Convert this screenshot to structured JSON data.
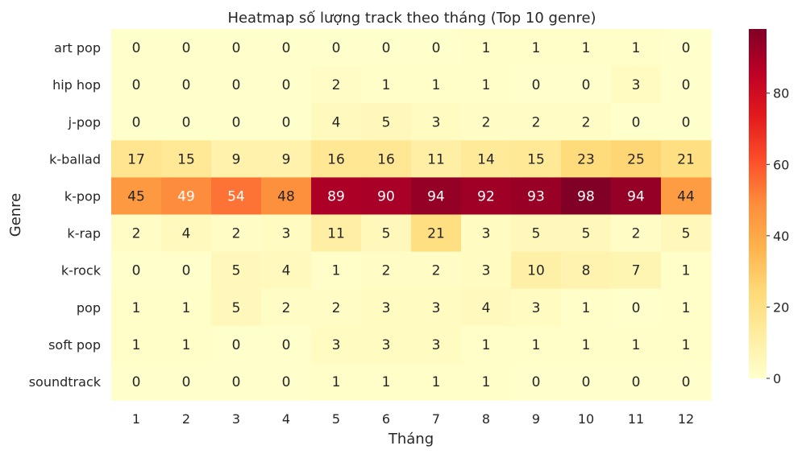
{
  "chart_data": {
    "type": "heatmap",
    "title": "Heatmap số lượng track theo tháng (Top 10 genre)",
    "xlabel": "Tháng",
    "ylabel": "Genre",
    "x_categories": [
      "1",
      "2",
      "3",
      "4",
      "5",
      "6",
      "7",
      "8",
      "9",
      "10",
      "11",
      "12"
    ],
    "y_categories": [
      "art pop",
      "hip hop",
      "j-pop",
      "k-ballad",
      "k-pop",
      "k-rap",
      "k-rock",
      "pop",
      "soft pop",
      "soundtrack"
    ],
    "values": [
      [
        0,
        0,
        0,
        0,
        0,
        0,
        0,
        1,
        1,
        1,
        1,
        0
      ],
      [
        0,
        0,
        0,
        0,
        2,
        1,
        1,
        1,
        0,
        0,
        3,
        0
      ],
      [
        0,
        0,
        0,
        0,
        4,
        5,
        3,
        2,
        2,
        2,
        0,
        0
      ],
      [
        17,
        15,
        9,
        9,
        16,
        16,
        11,
        14,
        15,
        23,
        25,
        21
      ],
      [
        45,
        49,
        54,
        48,
        89,
        90,
        94,
        92,
        93,
        98,
        94,
        44
      ],
      [
        2,
        4,
        2,
        3,
        11,
        5,
        21,
        3,
        5,
        5,
        2,
        5
      ],
      [
        0,
        0,
        5,
        4,
        1,
        2,
        2,
        3,
        10,
        8,
        7,
        1
      ],
      [
        1,
        1,
        5,
        2,
        2,
        3,
        3,
        4,
        3,
        1,
        0,
        1
      ],
      [
        1,
        1,
        0,
        0,
        3,
        3,
        3,
        1,
        1,
        1,
        1,
        1
      ],
      [
        0,
        0,
        0,
        0,
        1,
        1,
        1,
        1,
        0,
        0,
        0,
        0
      ]
    ],
    "colormap": "YlOrRd",
    "vmin": 0,
    "vmax": 98,
    "colorbar_ticks": [
      0,
      20,
      40,
      60,
      80
    ],
    "annotated": true,
    "grid": false
  }
}
